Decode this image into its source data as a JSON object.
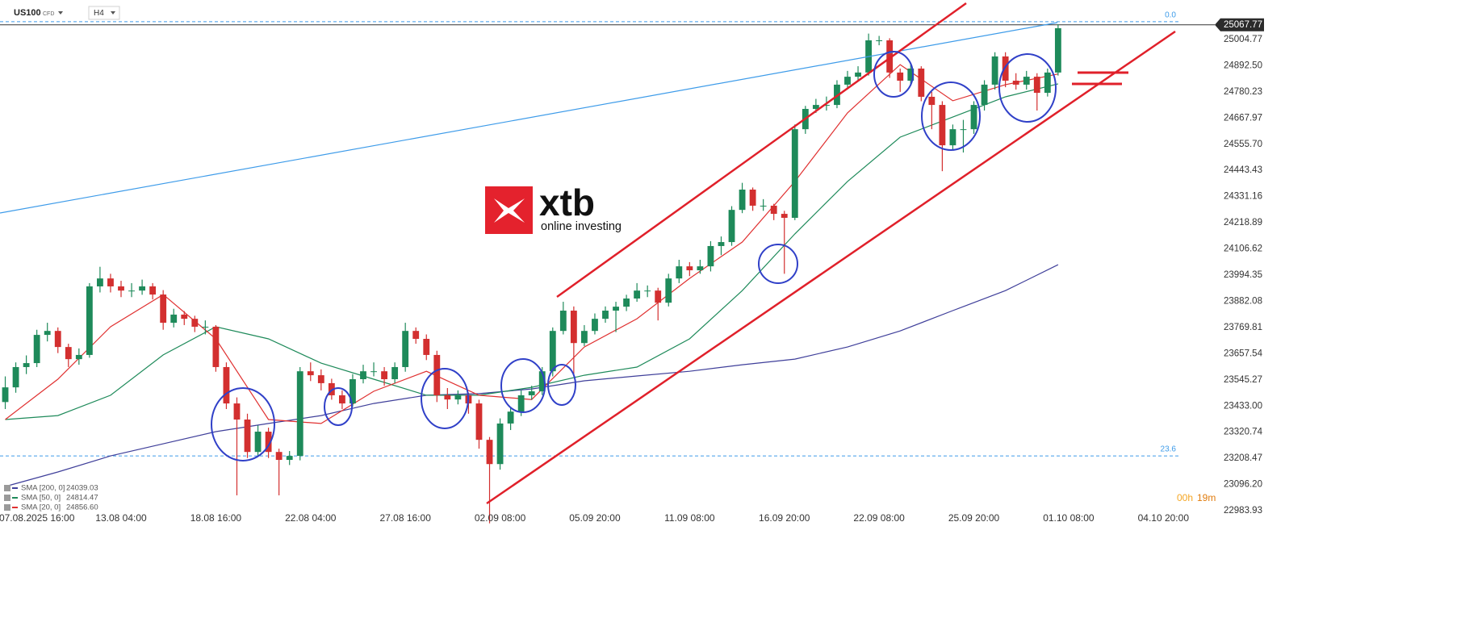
{
  "chart_data": {
    "type": "candlestick",
    "symbol": "US100",
    "instrument_type": "CFD",
    "timeframe": "H4",
    "logo": {
      "brand": "xtb",
      "tagline": "online investing"
    },
    "ylim": [
      22908,
      25174
    ],
    "yticks": [
      25004.77,
      {
        "value": 24892.5,
        "label": "24892.50"
      },
      24780.23,
      24667.97,
      {
        "value": 24555.7,
        "label": "24555.70"
      },
      24443.43,
      24331.16,
      24218.89,
      24106.62,
      23994.35,
      23882.08,
      23769.81,
      23657.54,
      23545.27,
      {
        "value": 23433,
        "label": "23433.00"
      },
      23320.74,
      23208.47,
      {
        "value": 23096.2,
        "label": "23096.20"
      },
      22983.93
    ],
    "xlim": [
      -0.5,
      114.5
    ],
    "xticks": [
      {
        "value": 3,
        "label": "07.08.2025  16:00"
      },
      {
        "value": 11,
        "label": "13.08  04:00"
      },
      {
        "value": 20,
        "label": "18.08  16:00"
      },
      {
        "value": 29,
        "label": "22.08  04:00"
      },
      {
        "value": 38,
        "label": "27.08  16:00"
      },
      {
        "value": 47,
        "label": "02.09  08:00"
      },
      {
        "value": 56,
        "label": "05.09  20:00"
      },
      {
        "value": 65,
        "label": "11.09  08:00"
      },
      {
        "value": 74,
        "label": "16.09  20:00"
      },
      {
        "value": 83,
        "label": "22.09  08:00"
      },
      {
        "value": 92,
        "label": "25.09  20:00"
      },
      {
        "value": 101,
        "label": "01.10  08:00"
      },
      {
        "value": 110,
        "label": "04.10  20:00"
      }
    ],
    "up_color": "#1e8a5a",
    "down_color": "#d32f2f",
    "candles": [
      [
        23450,
        23560,
        23420,
        23513
      ],
      [
        23513,
        23620,
        23490,
        23600
      ],
      [
        23600,
        23650,
        23570,
        23617
      ],
      [
        23617,
        23760,
        23600,
        23738
      ],
      [
        23738,
        23790,
        23710,
        23755
      ],
      [
        23755,
        23770,
        23660,
        23686
      ],
      [
        23686,
        23700,
        23600,
        23634
      ],
      [
        23634,
        23680,
        23610,
        23652
      ],
      [
        23652,
        23960,
        23640,
        23946
      ],
      [
        23946,
        24030,
        23920,
        23980
      ],
      [
        23980,
        24000,
        23920,
        23946
      ],
      [
        23946,
        23970,
        23900,
        23928
      ],
      [
        23928,
        23960,
        23900,
        23928
      ],
      [
        23928,
        23975,
        23910,
        23946
      ],
      [
        23946,
        23960,
        23890,
        23911
      ],
      [
        23911,
        23930,
        23760,
        23790
      ],
      [
        23790,
        23850,
        23770,
        23825
      ],
      [
        23825,
        23840,
        23780,
        23807
      ],
      [
        23807,
        23820,
        23750,
        23773
      ],
      [
        23773,
        23800,
        23740,
        23773
      ],
      [
        23773,
        23780,
        23580,
        23600
      ],
      [
        23600,
        23620,
        23420,
        23444
      ],
      [
        23444,
        23470,
        23050,
        23375
      ],
      [
        23375,
        23400,
        23210,
        23236
      ],
      [
        23236,
        23350,
        23220,
        23323
      ],
      [
        23323,
        23340,
        23210,
        23236
      ],
      [
        23236,
        23250,
        23050,
        23202
      ],
      [
        23202,
        23240,
        23180,
        23219
      ],
      [
        23219,
        23600,
        23200,
        23582
      ],
      [
        23582,
        23620,
        23540,
        23565
      ],
      [
        23565,
        23590,
        23500,
        23531
      ],
      [
        23531,
        23550,
        23460,
        23479
      ],
      [
        23479,
        23500,
        23420,
        23444
      ],
      [
        23444,
        23570,
        23430,
        23548
      ],
      [
        23548,
        23610,
        23530,
        23582
      ],
      [
        23582,
        23620,
        23560,
        23582
      ],
      [
        23582,
        23600,
        23520,
        23548
      ],
      [
        23548,
        23620,
        23530,
        23600
      ],
      [
        23600,
        23790,
        23580,
        23755
      ],
      [
        23755,
        23770,
        23700,
        23721
      ],
      [
        23721,
        23740,
        23630,
        23652
      ],
      [
        23652,
        23670,
        23450,
        23479
      ],
      [
        23479,
        23510,
        23420,
        23461
      ],
      [
        23461,
        23500,
        23440,
        23479
      ],
      [
        23479,
        23490,
        23400,
        23444
      ],
      [
        23444,
        23460,
        23250,
        23288
      ],
      [
        23288,
        23300,
        22930,
        23184
      ],
      [
        23184,
        23380,
        23160,
        23358
      ],
      [
        23358,
        23430,
        23330,
        23409
      ],
      [
        23409,
        23500,
        23390,
        23479
      ],
      [
        23479,
        23520,
        23460,
        23496
      ],
      [
        23496,
        23600,
        23480,
        23582
      ],
      [
        23582,
        23770,
        23560,
        23755
      ],
      [
        23755,
        23880,
        23740,
        23842
      ],
      [
        23842,
        23860,
        23560,
        23703
      ],
      [
        23703,
        23780,
        23690,
        23755
      ],
      [
        23755,
        23830,
        23740,
        23807
      ],
      [
        23807,
        23860,
        23790,
        23842
      ],
      [
        23842,
        23880,
        23750,
        23859
      ],
      [
        23859,
        23910,
        23840,
        23894
      ],
      [
        23894,
        23960,
        23880,
        23928
      ],
      [
        23928,
        23950,
        23900,
        23928
      ],
      [
        23928,
        23940,
        23800,
        23876
      ],
      [
        23876,
        24000,
        23860,
        23980
      ],
      [
        23980,
        24060,
        23960,
        24032
      ],
      [
        24032,
        24050,
        23990,
        24015
      ],
      [
        24015,
        24060,
        24000,
        24032
      ],
      [
        24032,
        24140,
        24010,
        24119
      ],
      [
        24119,
        24160,
        24080,
        24136
      ],
      [
        24136,
        24290,
        24120,
        24274
      ],
      [
        24274,
        24390,
        24260,
        24361
      ],
      [
        24361,
        24370,
        24270,
        24292
      ],
      [
        24292,
        24320,
        24270,
        24292
      ],
      [
        24292,
        24300,
        24230,
        24257
      ],
      [
        24257,
        24270,
        24000,
        24240
      ],
      [
        24240,
        24640,
        24230,
        24620
      ],
      [
        24620,
        24720,
        24600,
        24707
      ],
      [
        24707,
        24750,
        24690,
        24724
      ],
      [
        24724,
        24760,
        24700,
        24724
      ],
      [
        24724,
        24830,
        24710,
        24811
      ],
      [
        24811,
        24870,
        24790,
        24845
      ],
      [
        24845,
        24890,
        24830,
        24863
      ],
      [
        24863,
        25030,
        24850,
        25001
      ],
      [
        25001,
        25020,
        24980,
        25001
      ],
      [
        25001,
        25010,
        24840,
        24863
      ],
      [
        24863,
        24880,
        24780,
        24828
      ],
      [
        24828,
        24900,
        24810,
        24880
      ],
      [
        24880,
        24890,
        24740,
        24759
      ],
      [
        24759,
        24780,
        24620,
        24724
      ],
      [
        24724,
        24740,
        24440,
        24551
      ],
      [
        24551,
        24640,
        24530,
        24620
      ],
      [
        24620,
        24660,
        24520,
        24620
      ],
      [
        24620,
        24740,
        24600,
        24724
      ],
      [
        24724,
        24830,
        24700,
        24811
      ],
      [
        24811,
        24950,
        24790,
        24932
      ],
      [
        24932,
        24950,
        24800,
        24828
      ],
      [
        24828,
        24860,
        24790,
        24811
      ],
      [
        24811,
        24870,
        24790,
        24845
      ],
      [
        24845,
        24860,
        24700,
        24776
      ],
      [
        24776,
        24880,
        24760,
        24863
      ],
      [
        24863,
        25070,
        24850,
        25053
      ]
    ],
    "x": [
      0,
      5,
      10,
      15,
      20,
      25,
      30,
      35,
      40,
      45,
      50,
      55,
      60,
      65,
      70,
      75,
      80,
      85,
      90,
      95,
      100
    ],
    "series": [
      {
        "name": "SMA [200, 0]",
        "color": "#3f3f9a",
        "value_label": "24039.03",
        "values": [
          23088,
          23150,
          23219,
          23271,
          23323,
          23358,
          23392,
          23444,
          23479,
          23486,
          23506,
          23541,
          23562,
          23582,
          23610,
          23634,
          23686,
          23755,
          23842,
          23928,
          24039.03
        ]
      },
      {
        "name": "SMA [50, 0]",
        "color": "#1e8a5a",
        "value_label": "24814.47",
        "values": [
          23375,
          23392,
          23479,
          23652,
          23773,
          23721,
          23617,
          23548,
          23479,
          23479,
          23513,
          23565,
          23600,
          23721,
          23928,
          24171,
          24396,
          24586,
          24672,
          24759,
          24814.47
        ]
      },
      {
        "name": "SMA [20, 0]",
        "color": "#e03030",
        "value_label": "24856.60",
        "values": [
          23375,
          23548,
          23773,
          23911,
          23721,
          23375,
          23358,
          23496,
          23582,
          23479,
          23461,
          23686,
          23807,
          23980,
          24136,
          24396,
          24690,
          24897,
          24742,
          24811,
          24856.6
        ]
      }
    ],
    "levels": [
      {
        "label": "0.0",
        "value": 25081
      },
      {
        "label": "23.6",
        "value": 23219
      }
    ],
    "last_price": 25067.77,
    "countdown": {
      "hours": "00h",
      "minutes": "19m"
    }
  }
}
